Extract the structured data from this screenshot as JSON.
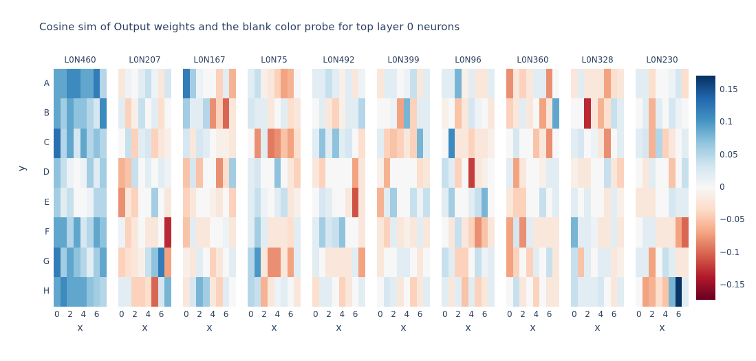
{
  "figure": {
    "title": "Cosine sim of Output weights and the blank color probe for top layer 0 neurons",
    "text_color": "#2a3f5f",
    "background_color": "#ffffff"
  },
  "chart_data": {
    "type": "heatmap",
    "title": "Cosine sim of Output weights and the blank color probe for top layer 0 neurons",
    "xlabel": "x",
    "ylabel": "y",
    "x_categories": [
      0,
      1,
      2,
      3,
      4,
      5,
      6,
      7
    ],
    "x_tick_labels": [
      "0",
      "2",
      "4",
      "6"
    ],
    "y_categories": [
      "A",
      "B",
      "C",
      "D",
      "E",
      "F",
      "G",
      "H"
    ],
    "zmin": -0.172,
    "zmax": 0.172,
    "grid": false,
    "legend_position": "right-colorbar",
    "colorscale_name": "RdBu",
    "colorscale": [
      {
        "t": 0.0,
        "c": "#67001f"
      },
      {
        "t": 0.1,
        "c": "#b2182b"
      },
      {
        "t": 0.2,
        "c": "#d6604d"
      },
      {
        "t": 0.3,
        "c": "#f4a582"
      },
      {
        "t": 0.4,
        "c": "#fddbc7"
      },
      {
        "t": 0.5,
        "c": "#f7f7f7"
      },
      {
        "t": 0.6,
        "c": "#d1e5f0"
      },
      {
        "t": 0.7,
        "c": "#92c5de"
      },
      {
        "t": 0.8,
        "c": "#4393c3"
      },
      {
        "t": 0.9,
        "c": "#2166ac"
      },
      {
        "t": 1.0,
        "c": "#053061"
      }
    ],
    "colorbar_ticks": [
      {
        "label": "0.15",
        "value": 0.15
      },
      {
        "label": "0.1",
        "value": 0.1
      },
      {
        "label": "0.05",
        "value": 0.05
      },
      {
        "label": "0",
        "value": 0
      },
      {
        "label": "−0.05",
        "value": -0.05
      },
      {
        "label": "−0.1",
        "value": -0.1
      },
      {
        "label": "−0.15",
        "value": -0.15
      }
    ],
    "facets": [
      {
        "name": "L0N460",
        "rows": [
          [
            0.09,
            0.09,
            0.11,
            0.11,
            0.09,
            0.09,
            0.12,
            0.05
          ],
          [
            0.09,
            0.06,
            0.09,
            0.07,
            0.07,
            0.05,
            0.03,
            0.11
          ],
          [
            0.13,
            0.05,
            0.09,
            0.03,
            0.09,
            0.05,
            0.07,
            0.05
          ],
          [
            0.07,
            0.04,
            0.01,
            0.0,
            0.01,
            0.06,
            0.02,
            0.06
          ],
          [
            0.06,
            0.02,
            0.04,
            0.0,
            0.0,
            0.01,
            0.05,
            0.05
          ],
          [
            0.09,
            0.09,
            0.05,
            0.09,
            0.03,
            0.05,
            0.09,
            0.07
          ],
          [
            0.12,
            0.06,
            0.09,
            0.07,
            0.05,
            0.02,
            0.06,
            0.09
          ],
          [
            0.09,
            0.11,
            0.09,
            0.09,
            0.09,
            0.07,
            0.06,
            0.05
          ]
        ]
      },
      {
        "name": "L0N207",
        "rows": [
          [
            -0.02,
            0.01,
            0.0,
            0.02,
            0.04,
            0.01,
            -0.02,
            0.03
          ],
          [
            0.02,
            -0.04,
            -0.01,
            0.04,
            0.0,
            0.02,
            -0.03,
            0.0
          ],
          [
            0.0,
            0.04,
            -0.04,
            0.02,
            0.03,
            -0.04,
            -0.02,
            -0.01
          ],
          [
            -0.06,
            -0.05,
            0.04,
            0.0,
            0.02,
            0.0,
            0.02,
            0.01
          ],
          [
            -0.08,
            -0.02,
            -0.04,
            0.0,
            0.0,
            0.06,
            0.0,
            -0.02
          ],
          [
            0.01,
            -0.04,
            -0.02,
            0.0,
            -0.02,
            -0.02,
            0.0,
            -0.13
          ],
          [
            -0.04,
            -0.03,
            -0.02,
            -0.01,
            0.04,
            0.07,
            0.12,
            -0.07
          ],
          [
            0.02,
            0.02,
            -0.04,
            -0.04,
            -0.03,
            -0.1,
            0.03,
            0.08
          ]
        ]
      },
      {
        "name": "L0N167",
        "rows": [
          [
            0.12,
            0.06,
            0.01,
            0.0,
            0.0,
            -0.04,
            0.02,
            -0.06
          ],
          [
            0.06,
            0.02,
            0.02,
            0.05,
            -0.08,
            -0.04,
            -0.1,
            -0.02
          ],
          [
            0.03,
            -0.02,
            0.03,
            0.02,
            0.0,
            -0.01,
            -0.01,
            -0.02
          ],
          [
            -0.05,
            0.03,
            -0.05,
            0.0,
            0.0,
            -0.08,
            -0.03,
            0.06
          ],
          [
            -0.04,
            -0.02,
            0.0,
            0.0,
            -0.01,
            -0.02,
            0.0,
            -0.04
          ],
          [
            -0.05,
            0.02,
            -0.02,
            -0.02,
            0.0,
            0.0,
            0.01,
            -0.02
          ],
          [
            -0.01,
            -0.02,
            0.02,
            0.0,
            -0.04,
            -0.02,
            0.0,
            0.02
          ],
          [
            -0.02,
            0.03,
            0.08,
            0.06,
            -0.02,
            -0.04,
            0.02,
            0.0
          ]
        ]
      },
      {
        "name": "L0N75",
        "rows": [
          [
            0.02,
            0.04,
            -0.01,
            -0.02,
            -0.04,
            -0.07,
            -0.06,
            0.0
          ],
          [
            0.03,
            0.02,
            0.02,
            -0.02,
            0.0,
            0.02,
            -0.03,
            -0.02
          ],
          [
            0.0,
            -0.08,
            0.02,
            -0.09,
            -0.08,
            -0.05,
            -0.07,
            -0.03
          ],
          [
            0.02,
            0.03,
            0.0,
            0.0,
            0.07,
            0.0,
            -0.02,
            -0.04
          ],
          [
            0.02,
            0.04,
            0.01,
            0.0,
            0.02,
            0.04,
            -0.02,
            -0.01
          ],
          [
            0.02,
            0.06,
            0.02,
            -0.02,
            -0.02,
            -0.02,
            -0.03,
            0.02
          ],
          [
            0.05,
            0.1,
            -0.02,
            -0.08,
            -0.08,
            -0.02,
            -0.07,
            0.02
          ],
          [
            0.05,
            0.04,
            -0.06,
            -0.02,
            0.01,
            0.02,
            0.0,
            -0.02
          ]
        ]
      },
      {
        "name": "L0N492",
        "rows": [
          [
            0.02,
            0.02,
            0.04,
            0.02,
            -0.01,
            0.02,
            -0.02,
            0.01
          ],
          [
            0.0,
            0.02,
            -0.02,
            -0.04,
            -0.01,
            0.02,
            0.02,
            0.05
          ],
          [
            0.02,
            0.07,
            0.02,
            0.07,
            0.02,
            0.03,
            0.0,
            -0.03
          ],
          [
            -0.02,
            -0.04,
            0.0,
            0.0,
            0.0,
            0.0,
            -0.07,
            -0.02
          ],
          [
            0.0,
            0.03,
            0.02,
            0.0,
            0.0,
            -0.02,
            -0.11,
            -0.02
          ],
          [
            0.02,
            0.06,
            0.03,
            0.04,
            0.07,
            0.0,
            0.0,
            -0.02
          ],
          [
            0.02,
            0.0,
            -0.02,
            -0.02,
            -0.02,
            -0.02,
            0.02,
            -0.07
          ],
          [
            -0.03,
            0.02,
            0.02,
            0.0,
            -0.04,
            -0.02,
            0.0,
            0.02
          ]
        ]
      },
      {
        "name": "L0N399",
        "rows": [
          [
            -0.02,
            0.02,
            0.02,
            0.0,
            0.01,
            0.04,
            -0.02,
            0.02
          ],
          [
            0.0,
            0.0,
            0.01,
            -0.07,
            0.08,
            -0.04,
            0.02,
            0.02
          ],
          [
            0.02,
            -0.04,
            -0.05,
            -0.04,
            -0.02,
            -0.04,
            0.08,
            0.02
          ],
          [
            -0.01,
            -0.06,
            0.0,
            0.0,
            0.0,
            0.0,
            -0.03,
            -0.02
          ],
          [
            -0.06,
            0.02,
            0.06,
            0.0,
            0.0,
            0.04,
            0.01,
            0.04
          ],
          [
            -0.02,
            -0.04,
            0.02,
            -0.02,
            -0.01,
            -0.02,
            0.02,
            -0.02
          ],
          [
            -0.02,
            0.0,
            0.0,
            0.02,
            0.02,
            0.0,
            -0.02,
            0.0
          ],
          [
            0.0,
            0.03,
            0.02,
            -0.02,
            0.0,
            -0.04,
            -0.02,
            0.02
          ]
        ]
      },
      {
        "name": "L0N96",
        "rows": [
          [
            0.02,
            0.02,
            0.08,
            -0.01,
            0.02,
            -0.02,
            -0.02,
            0.02
          ],
          [
            -0.01,
            0.0,
            -0.05,
            -0.02,
            0.03,
            0.01,
            0.0,
            -0.02
          ],
          [
            0.0,
            0.11,
            -0.02,
            -0.02,
            -0.04,
            -0.02,
            -0.02,
            -0.01
          ],
          [
            0.04,
            0.02,
            -0.04,
            0.0,
            -0.12,
            -0.02,
            -0.01,
            0.0
          ],
          [
            0.02,
            0.06,
            0.0,
            0.0,
            0.02,
            0.04,
            0.08,
            0.0
          ],
          [
            0.0,
            -0.02,
            0.04,
            -0.02,
            -0.04,
            -0.08,
            -0.05,
            -0.02
          ],
          [
            0.04,
            0.02,
            -0.04,
            -0.04,
            0.0,
            0.04,
            0.01,
            0.02
          ],
          [
            0.02,
            -0.02,
            0.02,
            -0.05,
            0.02,
            -0.04,
            -0.02,
            0.02
          ]
        ]
      },
      {
        "name": "L0N360",
        "rows": [
          [
            -0.08,
            -0.02,
            -0.04,
            -0.02,
            0.02,
            0.02,
            -0.08,
            0.0
          ],
          [
            -0.04,
            -0.02,
            0.02,
            -0.02,
            0.0,
            -0.07,
            -0.02,
            0.09
          ],
          [
            0.0,
            0.03,
            0.0,
            0.0,
            -0.05,
            -0.02,
            -0.08,
            0.0
          ],
          [
            0.02,
            -0.07,
            -0.02,
            0.0,
            0.0,
            -0.01,
            0.02,
            0.02
          ],
          [
            -0.02,
            -0.04,
            -0.04,
            0.0,
            0.0,
            0.04,
            0.0,
            0.02
          ],
          [
            -0.07,
            0.03,
            -0.08,
            0.02,
            -0.02,
            -0.02,
            -0.02,
            -0.02
          ],
          [
            -0.07,
            -0.04,
            0.0,
            -0.04,
            0.02,
            0.0,
            0.04,
            -0.02
          ],
          [
            0.0,
            0.04,
            -0.02,
            0.0,
            -0.04,
            0.0,
            -0.02,
            -0.02
          ]
        ]
      },
      {
        "name": "L0N328",
        "rows": [
          [
            -0.02,
            0.02,
            -0.02,
            -0.02,
            -0.02,
            -0.07,
            -0.03,
            -0.02
          ],
          [
            0.0,
            0.0,
            -0.13,
            -0.02,
            -0.06,
            -0.03,
            0.04,
            0.02
          ],
          [
            0.02,
            0.03,
            0.0,
            0.01,
            -0.02,
            -0.08,
            0.0,
            0.02
          ],
          [
            -0.01,
            -0.02,
            -0.02,
            0.0,
            0.0,
            0.04,
            -0.02,
            -0.04
          ],
          [
            0.02,
            0.0,
            0.02,
            0.0,
            0.0,
            -0.02,
            0.02,
            -0.01
          ],
          [
            0.08,
            0.02,
            0.02,
            0.01,
            -0.02,
            -0.02,
            0.02,
            -0.02
          ],
          [
            0.04,
            -0.05,
            0.02,
            0.0,
            0.02,
            0.02,
            -0.02,
            -0.01
          ],
          [
            0.04,
            0.02,
            0.02,
            0.02,
            0.03,
            0.0,
            -0.02,
            0.02
          ]
        ]
      },
      {
        "name": "L0N230",
        "rows": [
          [
            0.02,
            0.02,
            -0.03,
            0.0,
            0.0,
            0.01,
            0.03,
            -0.03
          ],
          [
            0.0,
            0.02,
            -0.06,
            0.02,
            0.0,
            0.03,
            0.01,
            0.0
          ],
          [
            0.02,
            0.03,
            -0.06,
            0.05,
            -0.04,
            -0.02,
            0.0,
            0.02
          ],
          [
            0.0,
            -0.02,
            0.02,
            0.0,
            0.0,
            -0.05,
            0.0,
            0.04
          ],
          [
            -0.02,
            -0.02,
            -0.02,
            0.0,
            0.0,
            0.03,
            0.02,
            0.02
          ],
          [
            0.0,
            0.02,
            0.02,
            -0.02,
            -0.02,
            -0.02,
            -0.07,
            -0.1
          ],
          [
            0.02,
            0.02,
            -0.07,
            0.0,
            0.04,
            0.02,
            -0.02,
            -0.02
          ],
          [
            0.0,
            -0.07,
            -0.06,
            -0.03,
            -0.05,
            0.08,
            0.17,
            0.02
          ]
        ]
      }
    ]
  }
}
